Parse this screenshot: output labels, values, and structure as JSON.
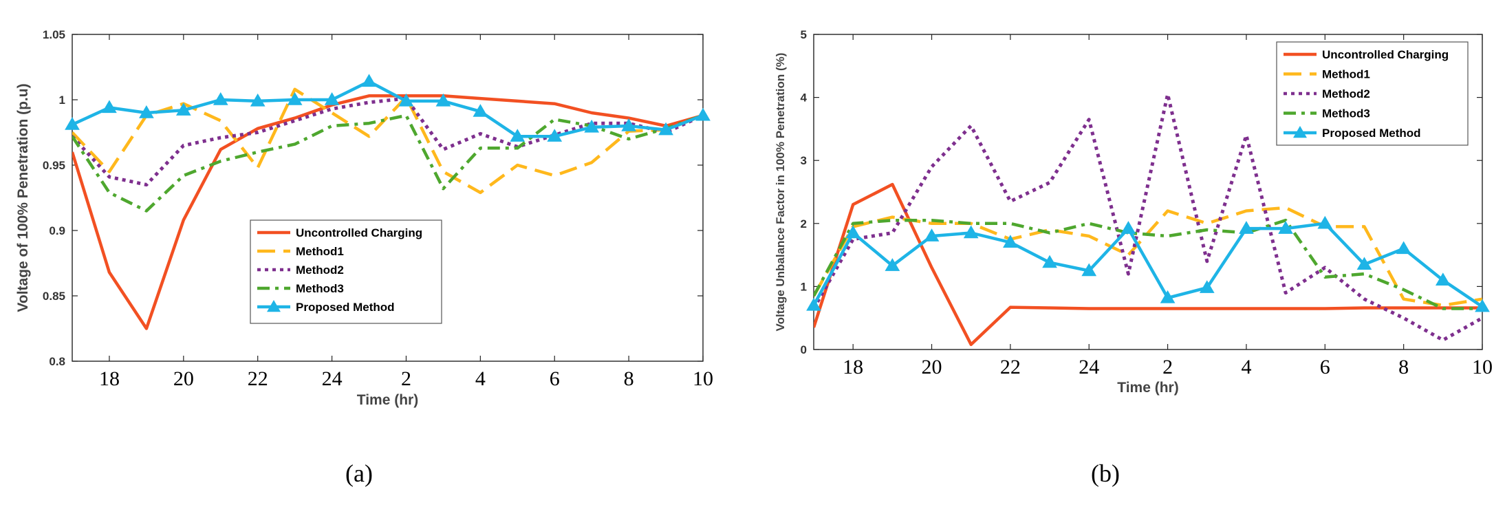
{
  "colors": {
    "uncontrolled": "#F25022",
    "method1": "#FFB81C",
    "method2": "#7E2F8E",
    "method3": "#4EA72E",
    "proposed": "#1EB4E6"
  },
  "chart_data": [
    {
      "type": "line",
      "panel_caption": "(a)",
      "xlabel": "Time (hr)",
      "ylabel": "Voltage of 100% Penetration (p.u)",
      "x": [
        17,
        18,
        19,
        20,
        21,
        22,
        23,
        24,
        25,
        26,
        27,
        28,
        29,
        30,
        31,
        32,
        33,
        34
      ],
      "xlim": [
        17,
        34
      ],
      "xtick_values": [
        18,
        20,
        22,
        24,
        26,
        28,
        30,
        32,
        34
      ],
      "xtick_labels": [
        "18",
        "20",
        "22",
        "24",
        "2",
        "4",
        "6",
        "8",
        "10"
      ],
      "ylim": [
        0.8,
        1.05
      ],
      "ytick_values": [
        0.8,
        0.85,
        0.9,
        0.95,
        1.0,
        1.05
      ],
      "ytick_labels": [
        "0.8",
        "0.85",
        "0.9",
        "0.95",
        "1",
        "1.05"
      ],
      "legend_position": "center",
      "series": [
        {
          "key": "uncontrolled",
          "name": "Uncontrolled Charging",
          "style": "solid",
          "values": [
            0.96,
            0.868,
            0.825,
            0.908,
            0.962,
            0.978,
            0.986,
            0.996,
            1.003,
            1.003,
            1.003,
            1.001,
            0.999,
            0.997,
            0.99,
            0.986,
            0.98,
            0.988
          ]
        },
        {
          "key": "method1",
          "name": "Method1",
          "style": "dashed",
          "values": [
            0.975,
            0.945,
            0.988,
            0.997,
            0.984,
            0.948,
            1.008,
            0.99,
            0.972,
            1.002,
            0.945,
            0.929,
            0.95,
            0.942,
            0.952,
            0.976,
            0.977,
            0.988
          ]
        },
        {
          "key": "method2",
          "name": "Method2",
          "style": "dotted",
          "values": [
            0.972,
            0.941,
            0.935,
            0.965,
            0.971,
            0.975,
            0.984,
            0.993,
            0.998,
            1.001,
            0.962,
            0.974,
            0.964,
            0.973,
            0.982,
            0.982,
            0.975,
            0.988
          ]
        },
        {
          "key": "method3",
          "name": "Method3",
          "style": "dashdot",
          "values": [
            0.972,
            0.929,
            0.915,
            0.942,
            0.953,
            0.96,
            0.966,
            0.98,
            0.982,
            0.988,
            0.932,
            0.963,
            0.963,
            0.985,
            0.98,
            0.97,
            0.978,
            0.988
          ]
        },
        {
          "key": "proposed",
          "name": "Proposed Method",
          "style": "solid-marker",
          "values": [
            0.981,
            0.994,
            0.99,
            0.992,
            1.0,
            0.999,
            1.0,
            1.0,
            1.014,
            0.999,
            0.999,
            0.991,
            0.972,
            0.972,
            0.979,
            0.98,
            0.977,
            0.988
          ]
        }
      ]
    },
    {
      "type": "line",
      "panel_caption": "(b)",
      "xlabel": "Time (hr)",
      "ylabel": "Voltage Unbalance Factor in 100% Penetration (%)",
      "x": [
        17,
        18,
        19,
        20,
        21,
        22,
        23,
        24,
        25,
        26,
        27,
        28,
        29,
        30,
        31,
        32,
        33,
        34
      ],
      "xlim": [
        17,
        34
      ],
      "xtick_values": [
        18,
        20,
        22,
        24,
        26,
        28,
        30,
        32,
        34
      ],
      "xtick_labels": [
        "18",
        "20",
        "22",
        "24",
        "2",
        "4",
        "6",
        "8",
        "10"
      ],
      "ylim": [
        0,
        5
      ],
      "ytick_values": [
        0,
        1,
        2,
        3,
        4,
        5
      ],
      "ytick_labels": [
        "0",
        "1",
        "2",
        "3",
        "4",
        "5"
      ],
      "legend_position": "top-right",
      "series": [
        {
          "key": "uncontrolled",
          "name": "Uncontrolled Charging",
          "style": "solid",
          "values": [
            0.35,
            2.3,
            2.62,
            1.3,
            0.08,
            0.67,
            0.66,
            0.65,
            0.65,
            0.65,
            0.65,
            0.65,
            0.65,
            0.65,
            0.66,
            0.66,
            0.66,
            0.66
          ]
        },
        {
          "key": "method1",
          "name": "Method1",
          "style": "dashed",
          "values": [
            0.85,
            1.95,
            2.1,
            2.0,
            2.0,
            1.75,
            1.9,
            1.8,
            1.5,
            2.2,
            2.0,
            2.2,
            2.25,
            1.95,
            1.95,
            0.8,
            0.7,
            0.8
          ]
        },
        {
          "key": "method2",
          "name": "Method2",
          "style": "dotted",
          "values": [
            0.65,
            1.75,
            1.85,
            2.9,
            3.55,
            2.35,
            2.65,
            3.65,
            1.2,
            4.05,
            1.4,
            3.4,
            0.9,
            1.3,
            0.8,
            0.5,
            0.15,
            0.5
          ]
        },
        {
          "key": "method3",
          "name": "Method3",
          "style": "dashdot",
          "values": [
            0.85,
            2.0,
            2.05,
            2.05,
            2.0,
            2.0,
            1.85,
            2.0,
            1.85,
            1.8,
            1.9,
            1.85,
            2.05,
            1.15,
            1.2,
            0.95,
            0.65,
            0.65
          ]
        },
        {
          "key": "proposed",
          "name": "Proposed Method",
          "style": "solid-marker",
          "values": [
            0.7,
            1.85,
            1.33,
            1.8,
            1.85,
            1.7,
            1.38,
            1.25,
            1.92,
            0.82,
            0.98,
            1.92,
            1.92,
            2.0,
            1.35,
            1.6,
            1.1,
            0.68
          ]
        }
      ]
    }
  ]
}
